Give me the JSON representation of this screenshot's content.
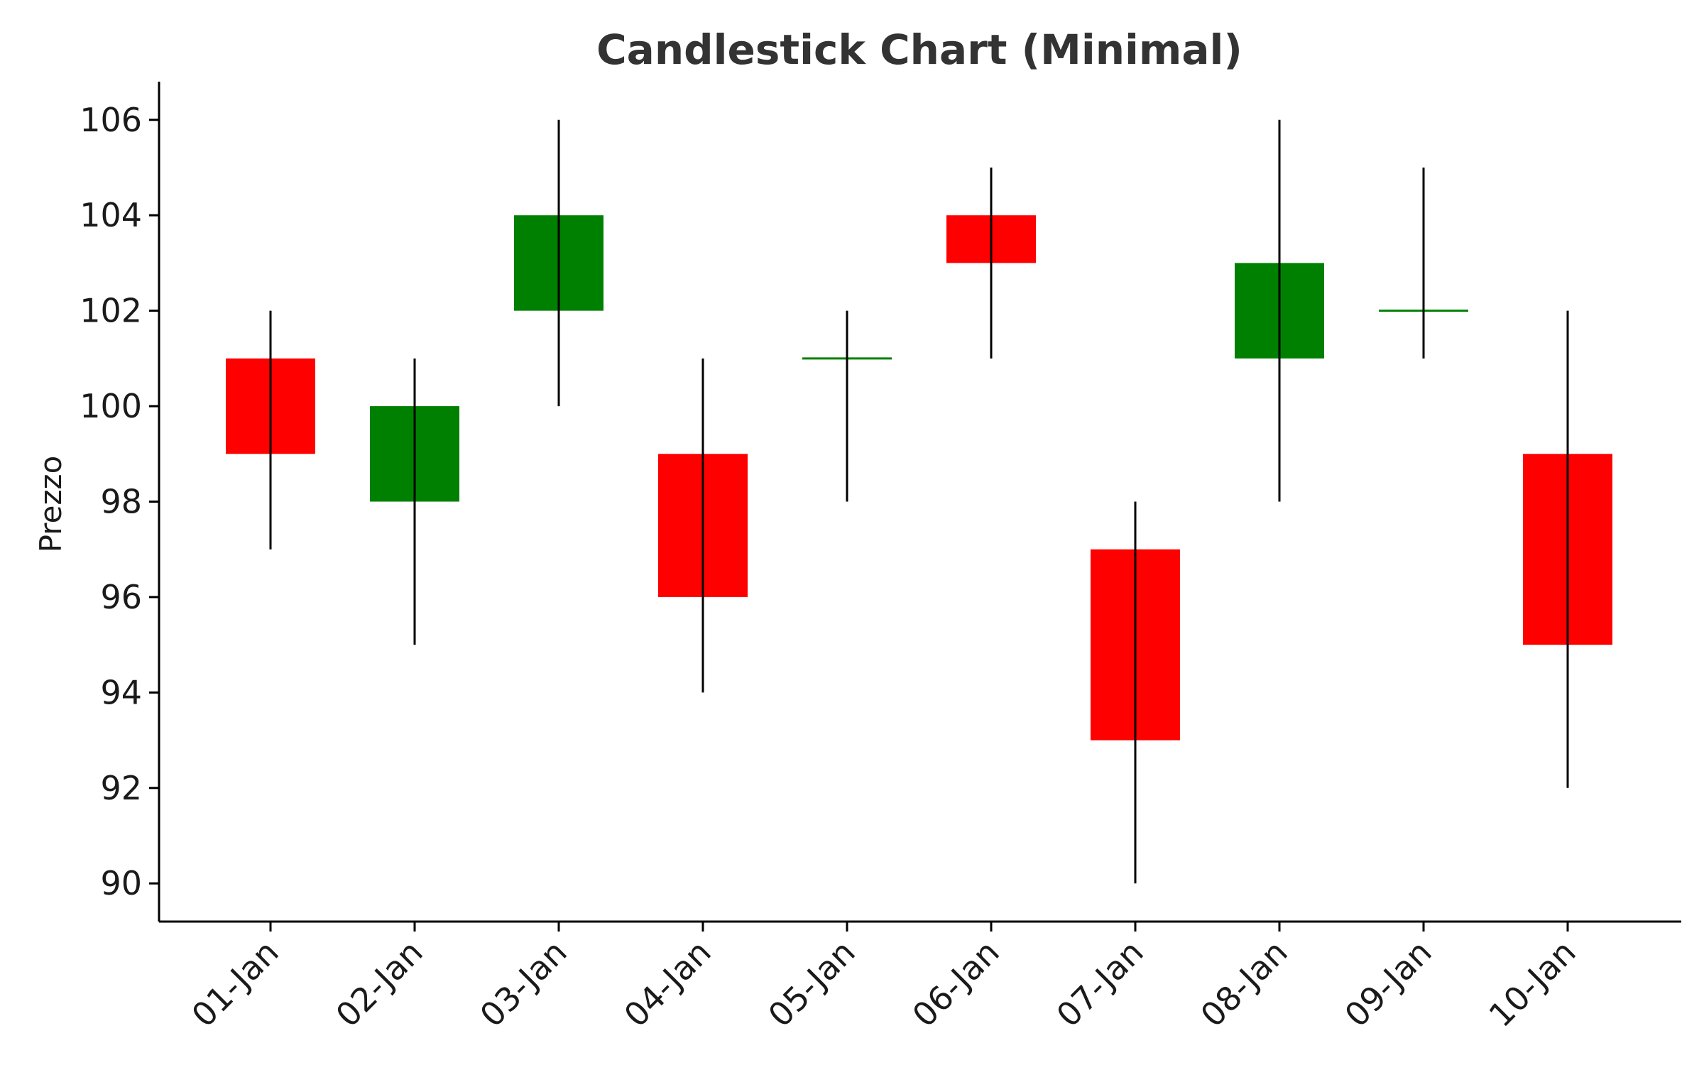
{
  "chart_data": {
    "type": "candlestick",
    "title": "Candlestick Chart (Minimal)",
    "xlabel": "",
    "ylabel": "Prezzo",
    "ylim": [
      89.2,
      106.8
    ],
    "yticks": [
      90,
      92,
      94,
      96,
      98,
      100,
      102,
      104,
      106
    ],
    "grid": false,
    "colors": {
      "up": "#008000",
      "down": "#ff0000",
      "wick": "#000000",
      "axis": "#000000"
    },
    "categories": [
      "01-Jan",
      "02-Jan",
      "03-Jan",
      "04-Jan",
      "05-Jan",
      "06-Jan",
      "07-Jan",
      "08-Jan",
      "09-Jan",
      "10-Jan"
    ],
    "open": [
      101,
      98,
      102,
      99,
      101,
      104,
      97,
      101,
      102,
      99
    ],
    "high": [
      102,
      101,
      106,
      101,
      102,
      105,
      98,
      106,
      105,
      102
    ],
    "low": [
      97,
      95,
      100,
      94,
      98,
      101,
      90,
      98,
      101,
      92
    ],
    "close": [
      99,
      100,
      104,
      96,
      101,
      103,
      93,
      103,
      102,
      95
    ]
  }
}
